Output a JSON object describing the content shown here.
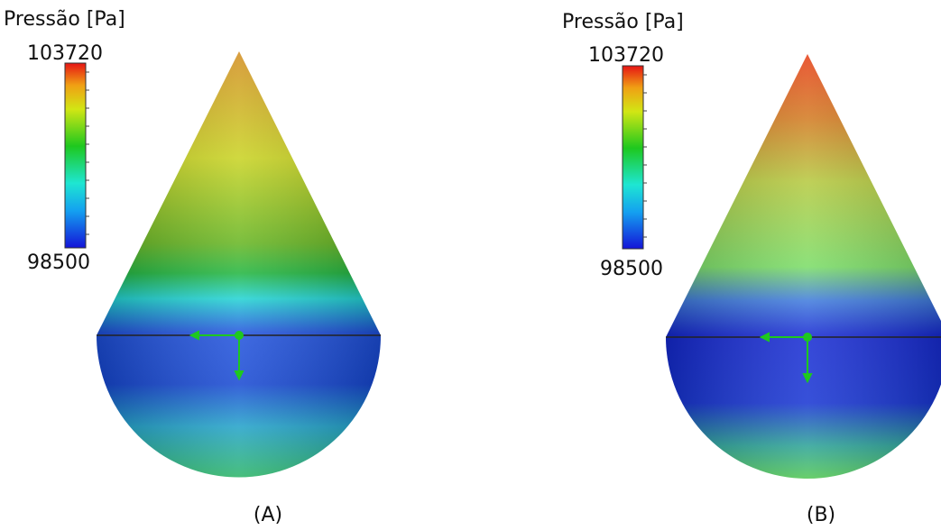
{
  "panels": [
    {
      "legend_title": "Pressão [Pa]",
      "max": 103720,
      "min": 98500,
      "caption": "(A)"
    },
    {
      "legend_title": "Pressão [Pa]",
      "max": 103720,
      "min": 98500,
      "caption": "(B)"
    }
  ]
}
